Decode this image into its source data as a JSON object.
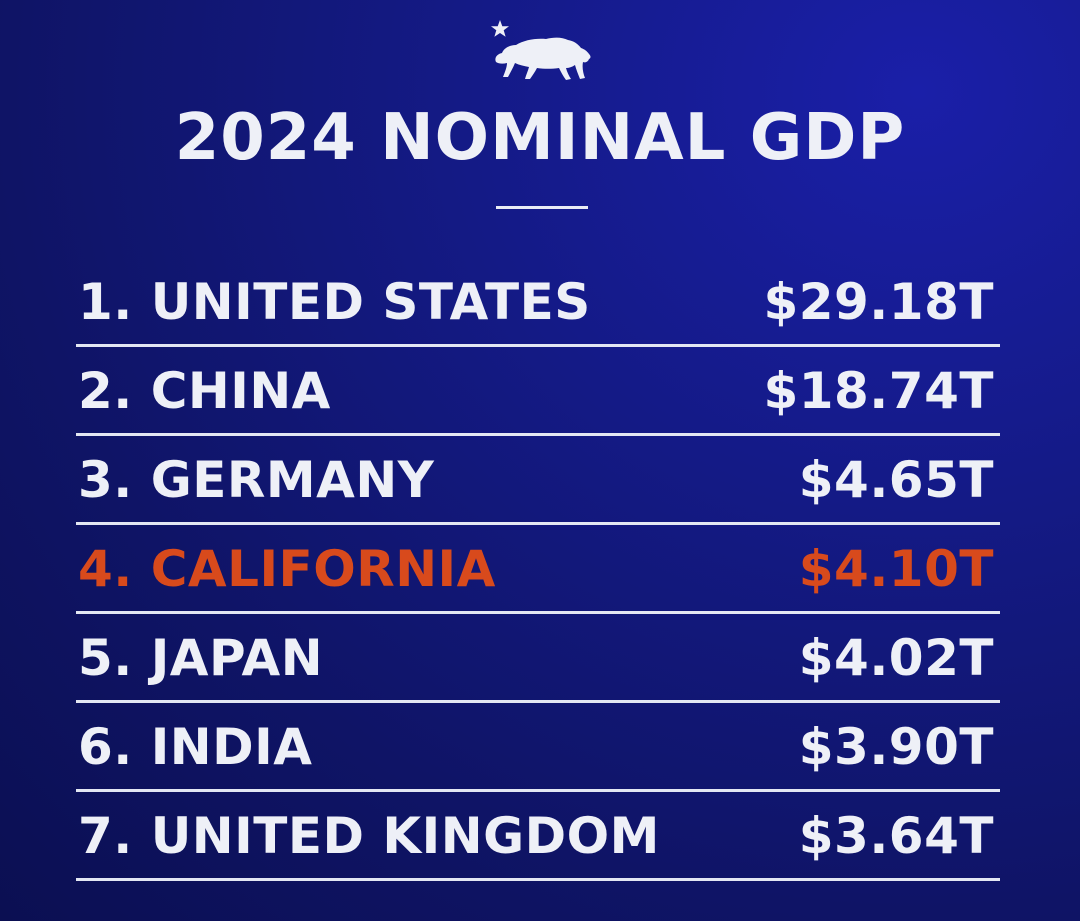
{
  "title": "2024 NOMINAL GDP",
  "colors": {
    "background": "#141a86",
    "text": "#eef0f7",
    "highlight": "#d84a1c"
  },
  "icons": {
    "logo": "california-bear-star-icon"
  },
  "chart_data": {
    "type": "table",
    "title": "2024 NOMINAL GDP",
    "columns": [
      "rank",
      "name",
      "value"
    ],
    "rows": [
      {
        "rank": "1.",
        "name": "UNITED STATES",
        "value": "$29.18T",
        "value_trillions": 29.18,
        "highlight": false
      },
      {
        "rank": "2.",
        "name": "CHINA",
        "value": "$18.74T",
        "value_trillions": 18.74,
        "highlight": false
      },
      {
        "rank": "3.",
        "name": "GERMANY",
        "value": "$4.65T",
        "value_trillions": 4.65,
        "highlight": false
      },
      {
        "rank": "4.",
        "name": "CALIFORNIA",
        "value": "$4.10T",
        "value_trillions": 4.1,
        "highlight": true
      },
      {
        "rank": "5.",
        "name": "JAPAN",
        "value": "$4.02T",
        "value_trillions": 4.02,
        "highlight": false
      },
      {
        "rank": "6.",
        "name": "INDIA",
        "value": "$3.90T",
        "value_trillions": 3.9,
        "highlight": false
      },
      {
        "rank": "7.",
        "name": "UNITED KINGDOM",
        "value": "$3.64T",
        "value_trillions": 3.64,
        "highlight": false
      }
    ]
  }
}
